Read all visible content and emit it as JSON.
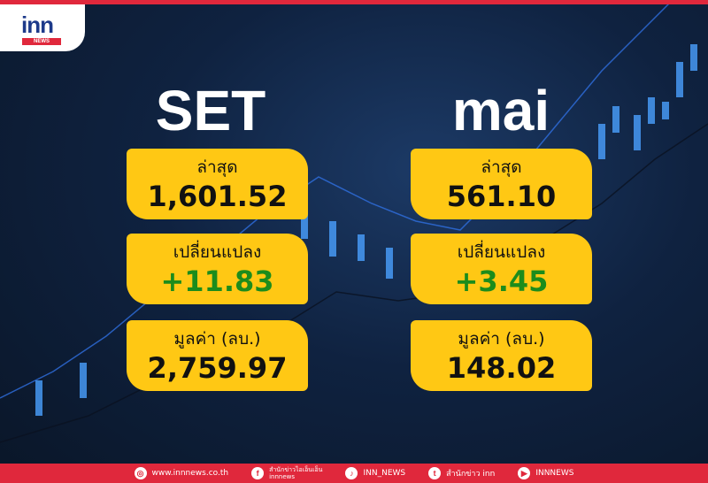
{
  "logo": {
    "text": "inn",
    "sub": "NEWS"
  },
  "colors": {
    "accent": "#e0283c",
    "card": "#ffc814",
    "positive": "#1c8c1c"
  },
  "markets": [
    {
      "name": "SET",
      "last_label": "ล่าสุด",
      "last": "1,601.52",
      "change_label": "เปลี่ยนแปลง",
      "change": "+11.83",
      "value_label": "มูลค่า (ลบ.)",
      "value": "2,759.97"
    },
    {
      "name": "mai",
      "last_label": "ล่าสุด",
      "last": "561.10",
      "change_label": "เปลี่ยนแปลง",
      "change": "+3.45",
      "value_label": "มูลค่า (ลบ.)",
      "value": "148.02"
    }
  ],
  "footer": {
    "website": {
      "icon": "globe-icon",
      "text": "www.innnews.co.th"
    },
    "facebook": {
      "icon": "facebook-icon",
      "text": "สำนักข่าวไอเอ็นเอ็น",
      "sub": "innnews"
    },
    "tiktok": {
      "icon": "tiktok-icon",
      "text": "INN_NEWS"
    },
    "twitter": {
      "icon": "twitter-icon",
      "text": "สำนักข่าว inn"
    },
    "youtube": {
      "icon": "youtube-icon",
      "text": "INNNEWS"
    }
  }
}
